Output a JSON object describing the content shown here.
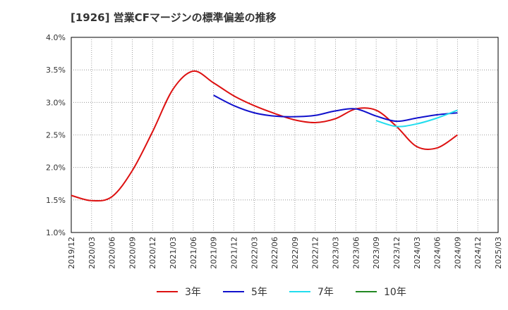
{
  "title": "[1926]  営業CFマージンの標準偏差の推移",
  "chart_data": {
    "type": "line",
    "title": "[1926]  営業CFマージンの標準偏差の推移",
    "xlabel": "",
    "ylabel": "",
    "x": [
      "2019/12",
      "2020/03",
      "2020/06",
      "2020/09",
      "2020/12",
      "2021/03",
      "2021/06",
      "2021/09",
      "2021/12",
      "2022/03",
      "2022/06",
      "2022/09",
      "2022/12",
      "2023/03",
      "2023/06",
      "2023/09",
      "2023/12",
      "2024/03",
      "2024/06",
      "2024/09",
      "2024/12",
      "2025/03"
    ],
    "ylim": [
      1.0,
      4.0
    ],
    "yticks": [
      "1.0%",
      "1.5%",
      "2.0%",
      "2.5%",
      "3.0%",
      "3.5%",
      "4.0%"
    ],
    "grid": true,
    "legend_position": "bottom",
    "series": [
      {
        "name": "3年",
        "color": "#dd1111",
        "values": [
          1.57,
          1.49,
          1.55,
          1.95,
          2.55,
          3.2,
          3.48,
          3.3,
          3.1,
          2.95,
          2.83,
          2.73,
          2.69,
          2.75,
          2.9,
          2.88,
          2.63,
          2.32,
          2.3,
          2.5,
          null,
          null
        ]
      },
      {
        "name": "5年",
        "color": "#1111cc",
        "values": [
          null,
          null,
          null,
          null,
          null,
          null,
          null,
          3.11,
          2.95,
          2.84,
          2.79,
          2.78,
          2.8,
          2.87,
          2.9,
          2.79,
          2.71,
          2.76,
          2.81,
          2.84,
          null,
          null
        ]
      },
      {
        "name": "7年",
        "color": "#22ddee",
        "values": [
          null,
          null,
          null,
          null,
          null,
          null,
          null,
          null,
          null,
          null,
          null,
          null,
          null,
          null,
          null,
          2.72,
          2.63,
          2.67,
          2.76,
          2.88,
          null,
          null
        ]
      },
      {
        "name": "10年",
        "color": "#228822",
        "values": [
          null,
          null,
          null,
          null,
          null,
          null,
          null,
          null,
          null,
          null,
          null,
          null,
          null,
          null,
          null,
          null,
          null,
          null,
          null,
          null,
          null,
          null
        ]
      }
    ]
  }
}
